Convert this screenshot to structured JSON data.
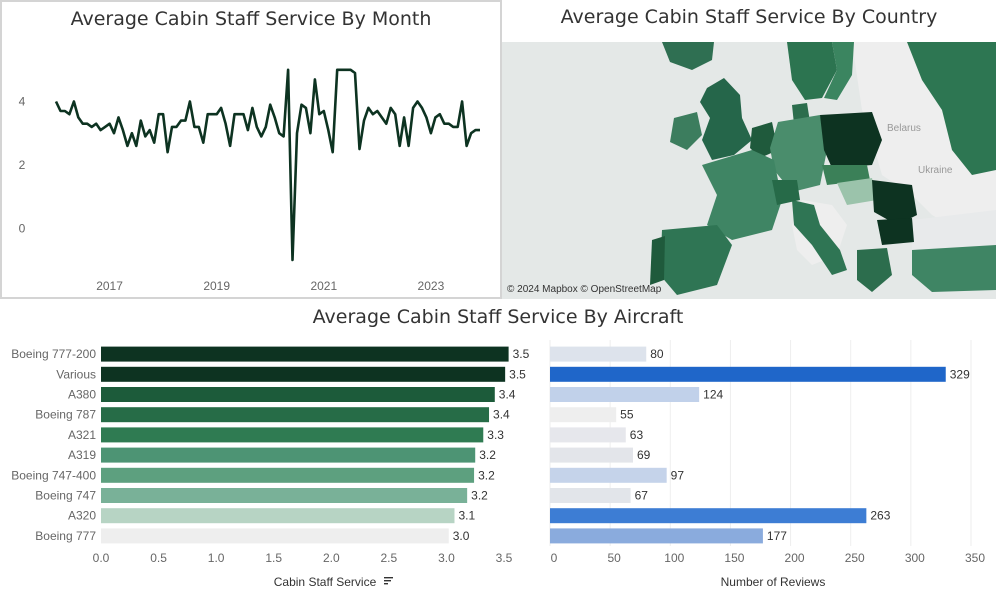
{
  "charts": {
    "month": {
      "title": "Average Cabin Staff Service By Month",
      "y_ticks": [
        "0",
        "2",
        "4"
      ],
      "x_ticks": [
        "2017",
        "2019",
        "2021",
        "2023"
      ]
    },
    "country": {
      "title": "Average Cabin Staff Service By Country",
      "labels": [
        "Belarus",
        "Ukraine"
      ],
      "attribution": "© 2024 Mapbox © OpenStreetMap"
    },
    "aircraft": {
      "title": "Average Cabin Staff Service By Aircraft",
      "left_axis_title": "Cabin Staff Service",
      "right_axis_title": "Number of Reviews",
      "left_ticks": [
        "0.0",
        "0.5",
        "1.0",
        "1.5",
        "2.0",
        "2.5",
        "3.0",
        "3.5"
      ],
      "right_ticks": [
        "0",
        "50",
        "100",
        "150",
        "200",
        "250",
        "300",
        "350"
      ]
    }
  },
  "chart_data": [
    {
      "type": "line",
      "title": "Average Cabin Staff Service By Month",
      "ylim": [
        -1,
        5.5
      ],
      "x_range": [
        "2016-01",
        "2023-12"
      ],
      "x": [
        "2016-01",
        "2016-02",
        "2016-03",
        "2016-04",
        "2016-05",
        "2016-06",
        "2016-07",
        "2016-08",
        "2016-09",
        "2016-10",
        "2016-11",
        "2016-12",
        "2017-01",
        "2017-02",
        "2017-03",
        "2017-04",
        "2017-05",
        "2017-06",
        "2017-07",
        "2017-08",
        "2017-09",
        "2017-10",
        "2017-11",
        "2017-12",
        "2018-01",
        "2018-02",
        "2018-03",
        "2018-04",
        "2018-05",
        "2018-06",
        "2018-07",
        "2018-08",
        "2018-09",
        "2018-10",
        "2018-11",
        "2018-12",
        "2019-01",
        "2019-02",
        "2019-03",
        "2019-04",
        "2019-05",
        "2019-06",
        "2019-07",
        "2019-08",
        "2019-09",
        "2019-10",
        "2019-11",
        "2019-12",
        "2020-01",
        "2020-02",
        "2020-03",
        "2020-04",
        "2020-05",
        "2020-06",
        "2020-07",
        "2020-08",
        "2020-09",
        "2020-10",
        "2020-11",
        "2020-12",
        "2021-01",
        "2021-02",
        "2021-03",
        "2021-04",
        "2021-05",
        "2021-06",
        "2021-07",
        "2021-08",
        "2021-09",
        "2021-10",
        "2021-11",
        "2021-12",
        "2022-01",
        "2022-02",
        "2022-03",
        "2022-04",
        "2022-05",
        "2022-06",
        "2022-07",
        "2022-08",
        "2022-09",
        "2022-10",
        "2022-11",
        "2022-12",
        "2023-01",
        "2023-02",
        "2023-03",
        "2023-04",
        "2023-05",
        "2023-06",
        "2023-07",
        "2023-08",
        "2023-09",
        "2023-10",
        "2023-11",
        "2023-12"
      ],
      "y": [
        4.0,
        3.7,
        3.7,
        3.6,
        4.0,
        3.5,
        3.3,
        3.3,
        3.2,
        3.3,
        3.1,
        3.2,
        3.3,
        3.0,
        3.5,
        3.1,
        2.6,
        3.0,
        2.6,
        3.4,
        2.9,
        3.1,
        2.7,
        3.6,
        3.6,
        2.4,
        3.2,
        3.2,
        3.4,
        3.4,
        4.0,
        3.2,
        3.2,
        2.7,
        3.6,
        3.6,
        3.6,
        3.8,
        3.3,
        2.6,
        3.6,
        3.6,
        3.6,
        3.1,
        3.8,
        3.2,
        2.9,
        3.2,
        3.9,
        3.5,
        3.0,
        2.9,
        5.0,
        -1.0,
        3.0,
        3.9,
        3.8,
        3.0,
        4.7,
        3.6,
        3.7,
        3.1,
        2.4,
        5.0,
        5.0,
        5.0,
        5.0,
        4.9,
        2.5,
        3.4,
        3.8,
        3.6,
        3.7,
        3.5,
        3.3,
        3.8,
        3.6,
        2.6,
        3.5,
        2.6,
        3.8,
        4.0,
        3.8,
        3.5,
        3.0,
        3.5,
        3.6,
        3.3,
        3.3,
        3.2,
        3.2,
        4.0,
        2.6,
        3.0,
        3.1,
        3.1
      ]
    },
    {
      "type": "heatmap",
      "title": "Average Cabin Staff Service By Country",
      "note": "choropleth map of Europe; darker green = higher average"
    },
    {
      "type": "bar",
      "title": "Average Cabin Staff Service By Aircraft",
      "categories": [
        "Boeing 777-200",
        "Various",
        "A380",
        "Boeing 787",
        "A321",
        "A319",
        "Boeing 747-400",
        "Boeing 747",
        "A320",
        "Boeing 777"
      ],
      "series": [
        {
          "values": [
            3.5,
            3.5,
            3.4,
            3.4,
            3.3,
            3.2,
            3.2,
            3.2,
            3.1,
            3.0
          ],
          "labels": [
            "3.5",
            "3.5",
            "3.4",
            "3.4",
            "3.3",
            "3.2",
            "3.2",
            "3.2",
            "3.1",
            "3.0"
          ],
          "bar_values": [
            3.54,
            3.51,
            3.42,
            3.37,
            3.32,
            3.25,
            3.24,
            3.18,
            3.07,
            3.02
          ],
          "colors": [
            "#0d3321",
            "#0d3321",
            "#1c5b3a",
            "#266c47",
            "#2f7b52",
            "#4d9474",
            "#5da07f",
            "#79b198",
            "#b7d4c4",
            "#eeeeee"
          ]
        },
        {
          "values": [
            80,
            329,
            124,
            55,
            63,
            69,
            97,
            67,
            263,
            177
          ],
          "labels": [
            "80",
            "329",
            "124",
            "55",
            "63",
            "69",
            "97",
            "67",
            "263",
            "177"
          ],
          "colors": [
            "#dde3ec",
            "#1f66c9",
            "#c1d1ea",
            "#eeeeee",
            "#e6e7ec",
            "#e3e5ea",
            "#c5d3ea",
            "#e2e5ea",
            "#3d7dd4",
            "#8aabdd"
          ]
        }
      ],
      "xlim_left": [
        0,
        3.5
      ],
      "xlim_right": [
        0,
        350
      ]
    }
  ]
}
